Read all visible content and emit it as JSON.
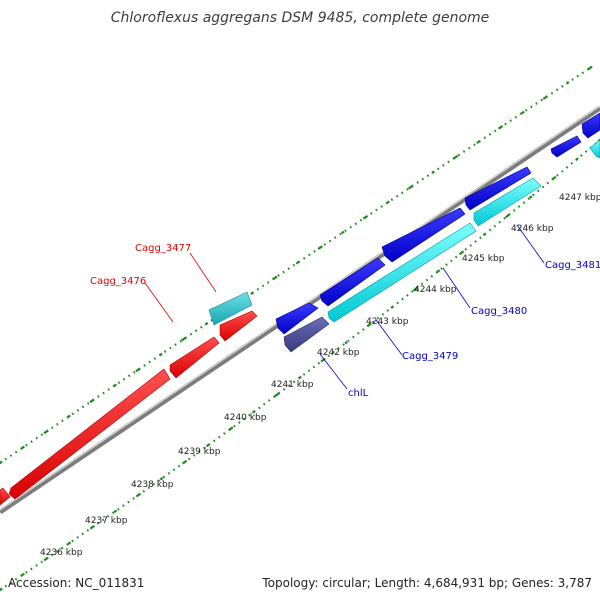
{
  "title": "Chloroflexus aggregans DSM 9485, complete genome",
  "footer": {
    "accession": "Accession: NC_011831",
    "summary": "Topology: circular; Length: 4,684,931 bp; Genes: 3,787"
  },
  "colors": {
    "backbone": "#8c8c8c",
    "tick": "#1e8c1e",
    "reverse_strand_gene": "#ff0000",
    "reverse_strand_outline": "#b40000",
    "forward_strand_blue": "#0000e6",
    "forward_strand_cyan": "#00e6e6",
    "forward_strand_navy": "#4b4b96",
    "reverse_label": "#e60000",
    "forward_label": "#0000cc"
  },
  "tick_labels": [
    "4236 kbp",
    "4237 kbp",
    "4238 kbp",
    "4239 kbp",
    "4240 kbp",
    "4241 kbp",
    "4242 kbp",
    "4243 kbp",
    "4244 kbp",
    "4245 kbp",
    "4246 kbp",
    "4247 kbp"
  ],
  "gene_labels": {
    "reverse": [
      "Cagg_3477",
      "Cagg_3476"
    ],
    "forward": [
      "chlL",
      "Cagg_3479",
      "Cagg_3480",
      "Cagg_3481"
    ]
  }
}
